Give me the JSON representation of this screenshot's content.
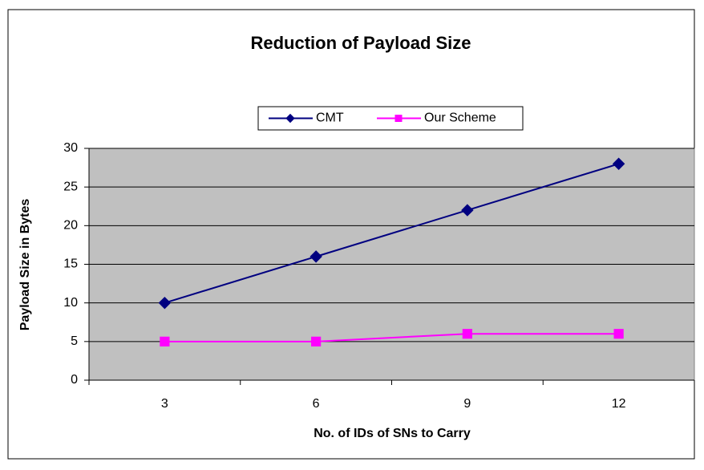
{
  "chart_data": {
    "type": "line",
    "title": "Reduction of Payload Size",
    "x_label": "No. of IDs of SNs to Carry",
    "y_label": "Payload Size in Bytes",
    "categories": [
      "3",
      "6",
      "9",
      "12"
    ],
    "series": [
      {
        "name": "CMT",
        "color": "#000080",
        "marker": "diamond",
        "values": [
          10,
          16,
          22,
          28
        ]
      },
      {
        "name": "Our Scheme",
        "color": "#ff00ff",
        "marker": "square",
        "values": [
          5,
          5,
          6,
          6
        ]
      }
    ],
    "ylim": [
      0,
      30
    ],
    "yticks": [
      0,
      5,
      10,
      15,
      20,
      25,
      30
    ],
    "grid": true,
    "plot_background": "#c0c0c0",
    "legend": "top"
  }
}
